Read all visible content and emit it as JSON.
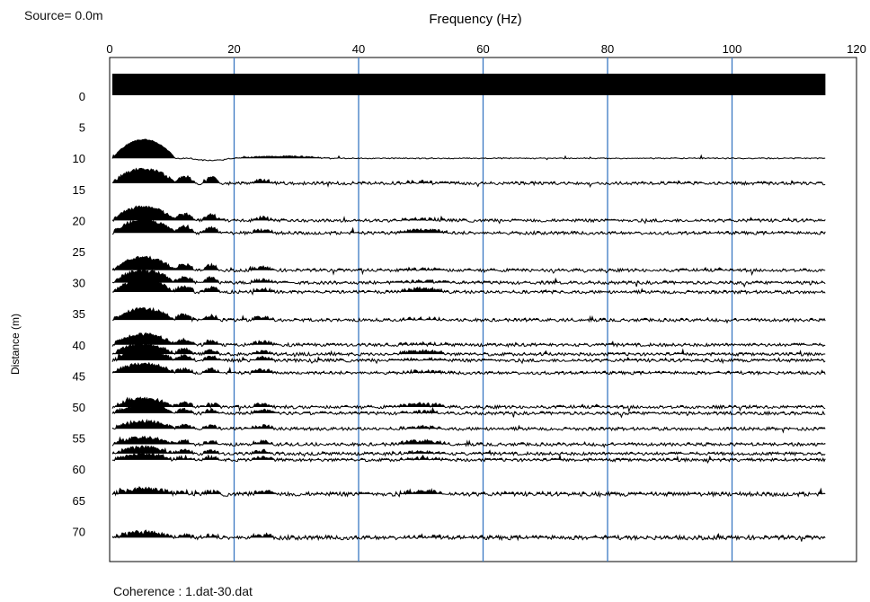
{
  "header": {
    "source_text": "Source=  0.0m"
  },
  "footer": {
    "coherence_text": "Coherence : 1.dat-30.dat"
  },
  "chart_data": {
    "type": "line",
    "title": "",
    "xlabel": "Frequency (Hz)",
    "ylabel": "Distance (m)",
    "xlim": [
      0,
      120
    ],
    "ylim": [
      -5,
      75
    ],
    "x_axis_position": "top",
    "y_inverted": true,
    "x_ticks": [
      0,
      20,
      40,
      60,
      80,
      100,
      120
    ],
    "y_ticks": [
      0,
      5,
      10,
      15,
      20,
      25,
      30,
      35,
      40,
      45,
      50,
      55,
      60,
      65,
      70
    ],
    "vertical_grid_hz": [
      20,
      40,
      60,
      80,
      100
    ],
    "grid_color": "#3a78c2",
    "trace_color": "#000000",
    "trace_freq_range": [
      0,
      115
    ],
    "reference_trace": {
      "distance": 0,
      "kind": "filled band"
    },
    "series": [
      {
        "distance": 10
      },
      {
        "distance": 14
      },
      {
        "distance": 20
      },
      {
        "distance": 22
      },
      {
        "distance": 28
      },
      {
        "distance": 30
      },
      {
        "distance": 31.5
      },
      {
        "distance": 36
      },
      {
        "distance": 40
      },
      {
        "distance": 41.5
      },
      {
        "distance": 42.5
      },
      {
        "distance": 44.5
      },
      {
        "distance": 50
      },
      {
        "distance": 51
      },
      {
        "distance": 53.5
      },
      {
        "distance": 56
      },
      {
        "distance": 57.5
      },
      {
        "distance": 58.5
      },
      {
        "distance": 64
      },
      {
        "distance": 71
      }
    ]
  }
}
